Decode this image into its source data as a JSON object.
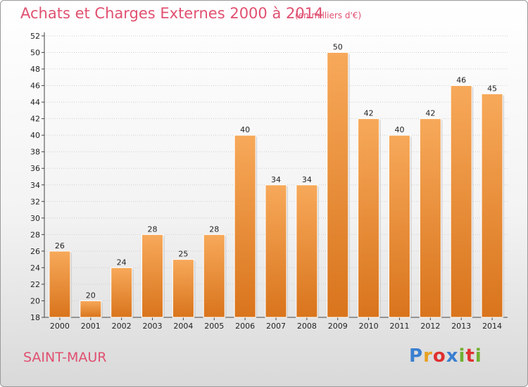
{
  "header": {
    "title": "Achats et Charges Externes 2000 à 2014",
    "subtitle": "(en milliers d'€)"
  },
  "footer": {
    "commune": "SAINT-MAUR",
    "logo_text": "Proxiti",
    "logo_colors": [
      "#3a7fd0",
      "#e8a020",
      "#e03030",
      "#3a7fd0",
      "#70b030",
      "#e03030",
      "#70b030"
    ]
  },
  "colors": {
    "bar_top": "#f7a95a",
    "bar_bottom": "#d9741c",
    "accent": "#e05070"
  },
  "chart_data": {
    "type": "bar",
    "title": "Achats et Charges Externes 2000 à 2014",
    "subtitle": "(en milliers d'€)",
    "categories": [
      "2000",
      "2001",
      "2002",
      "2003",
      "2004",
      "2005",
      "2006",
      "2007",
      "2008",
      "2009",
      "2010",
      "2011",
      "2012",
      "2013",
      "2014"
    ],
    "values": [
      26,
      20,
      24,
      28,
      25,
      28,
      40,
      34,
      34,
      50,
      42,
      40,
      42,
      46,
      45
    ],
    "ylim": [
      18,
      52
    ],
    "yticks": [
      18,
      20,
      22,
      24,
      26,
      28,
      30,
      32,
      34,
      36,
      38,
      40,
      42,
      44,
      46,
      48,
      50,
      52
    ],
    "grid": true,
    "xlabel": "",
    "ylabel": ""
  }
}
